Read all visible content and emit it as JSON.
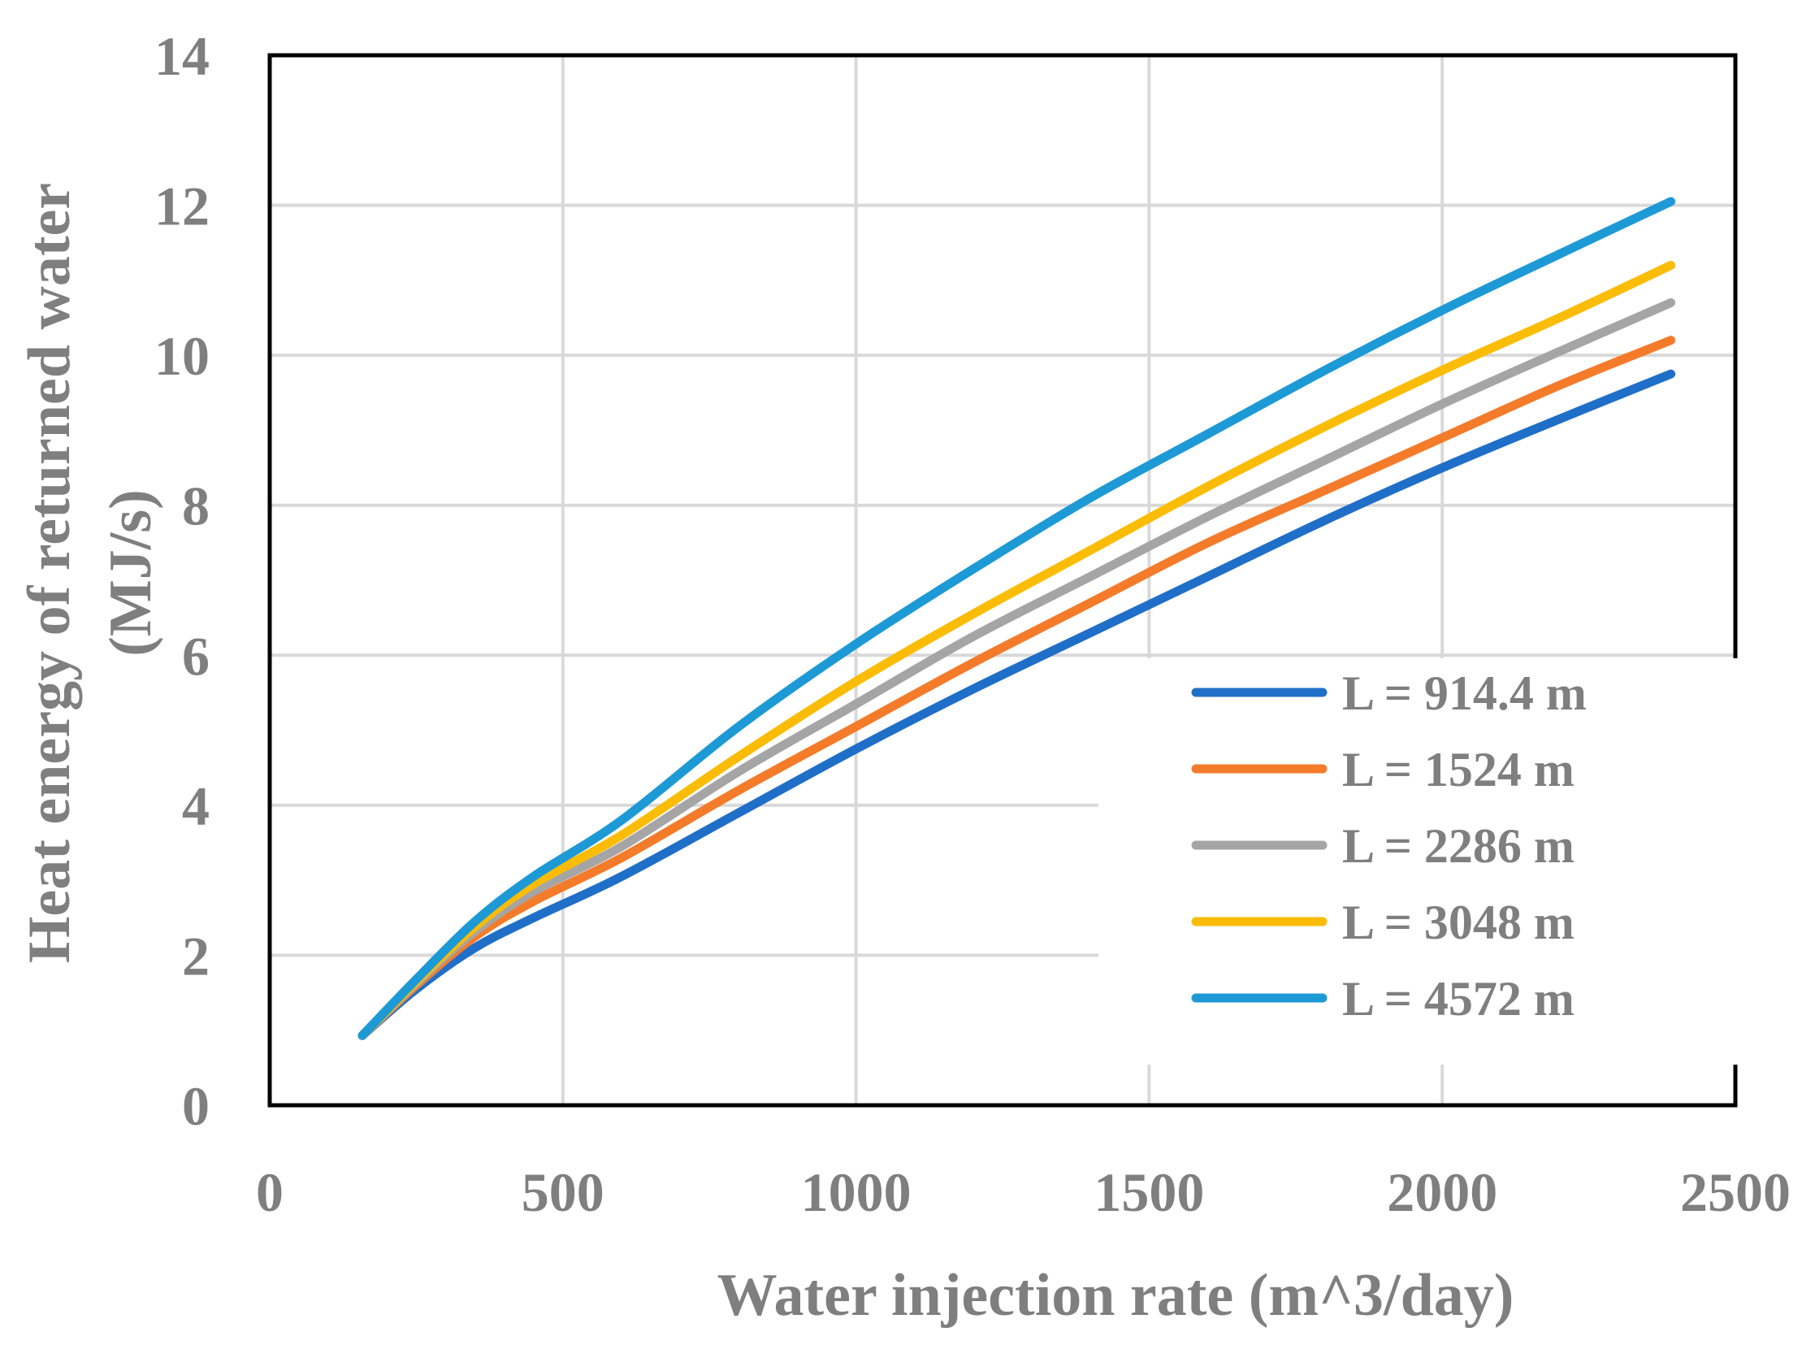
{
  "chart_data": {
    "type": "line",
    "title": "",
    "xlabel": "Water injection rate (m^3/day)",
    "ylabel_line1": "Heat energy of returned water",
    "ylabel_line2": "(MJ/s)",
    "xlim": [
      0,
      2500
    ],
    "ylim": [
      0,
      14
    ],
    "xticks": [
      0,
      500,
      1000,
      1500,
      2000,
      2500
    ],
    "yticks": [
      0,
      2,
      4,
      6,
      8,
      10,
      12,
      14
    ],
    "grid": true,
    "legend_position": "bottom-right",
    "x": [
      158,
      250,
      350,
      450,
      600,
      800,
      1000,
      1200,
      1400,
      1600,
      1800,
      2000,
      2200,
      2390
    ],
    "series": [
      {
        "name": "L = 914.4 m",
        "color": "#1f6fc8",
        "values": [
          0.93,
          1.55,
          2.1,
          2.5,
          3.05,
          3.9,
          4.75,
          5.55,
          6.3,
          7.05,
          7.8,
          8.5,
          9.15,
          9.75
        ]
      },
      {
        "name": "L = 1524 m",
        "color": "#f47b2a",
        "values": [
          0.93,
          1.6,
          2.25,
          2.72,
          3.3,
          4.2,
          5.05,
          5.9,
          6.7,
          7.5,
          8.2,
          8.9,
          9.6,
          10.2
        ]
      },
      {
        "name": "L = 2286 m",
        "color": "#a5a5a5",
        "values": [
          0.93,
          1.63,
          2.32,
          2.85,
          3.45,
          4.45,
          5.35,
          6.25,
          7.05,
          7.85,
          8.6,
          9.35,
          10.05,
          10.7
        ]
      },
      {
        "name": "L = 3048 m",
        "color": "#fbbc05",
        "values": [
          0.93,
          1.65,
          2.38,
          2.95,
          3.6,
          4.65,
          5.65,
          6.55,
          7.4,
          8.25,
          9.05,
          9.8,
          10.5,
          11.2
        ]
      },
      {
        "name": "L = 4572 m",
        "color": "#1d9ad6",
        "values": [
          0.93,
          1.68,
          2.45,
          3.05,
          3.8,
          5.05,
          6.15,
          7.15,
          8.1,
          8.95,
          9.8,
          10.6,
          11.35,
          12.05
        ]
      }
    ]
  },
  "colors": {
    "axis_text": "#7f7f7f",
    "grid": "#d9d9d9",
    "frame": "#000000"
  }
}
